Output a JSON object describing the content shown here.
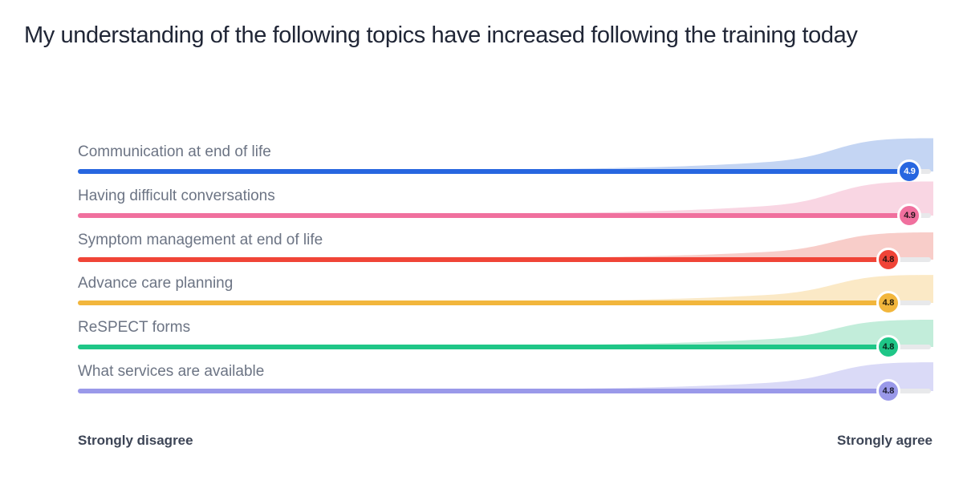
{
  "title": "My understanding of the following topics have increased following the training today",
  "axis": {
    "left_label": "Strongly disagree",
    "right_label": "Strongly agree"
  },
  "chart_data": {
    "type": "area",
    "subtype": "rating-scale-averages-with-distribution-ridges",
    "title": "My understanding of the following topics have increased following the training today",
    "scale": {
      "min": 1,
      "max": 5,
      "min_label": "Strongly disagree",
      "max_label": "Strongly agree"
    },
    "categories": [
      "Communication at end of life",
      "Having difficult conversations",
      "Symptom management at end of life",
      "Advance care planning",
      "ReSPECT forms",
      "What services are available"
    ],
    "values": [
      4.9,
      4.9,
      4.8,
      4.8,
      4.8,
      4.8
    ],
    "grid": false,
    "legend": false,
    "rows": [
      {
        "label": "Communication at end of life",
        "value": 4.9,
        "display_value": "4.9",
        "line_color": "#2766e0",
        "ridge_color": "#c4d5f3",
        "value_text_color": "#ffffff",
        "ridge_height": 44
      },
      {
        "label": "Having difficult conversations",
        "value": 4.9,
        "display_value": "4.9",
        "line_color": "#f0709e",
        "ridge_color": "#f9d6e3",
        "value_text_color": "#26161d",
        "ridge_height": 45
      },
      {
        "label": "Symptom management at end of life",
        "value": 4.8,
        "display_value": "4.8",
        "line_color": "#f04437",
        "ridge_color": "#f8cdc9",
        "value_text_color": "#26120f",
        "ridge_height": 36
      },
      {
        "label": "Advance care planning",
        "value": 4.8,
        "display_value": "4.8",
        "line_color": "#f2b63c",
        "ridge_color": "#fbe9c6",
        "value_text_color": "#231a07",
        "ridge_height": 37
      },
      {
        "label": "ReSPECT forms",
        "value": 4.8,
        "display_value": "4.8",
        "line_color": "#1fc687",
        "ridge_color": "#c2edda",
        "value_text_color": "#0b2318",
        "ridge_height": 36
      },
      {
        "label": "What services are available",
        "value": 4.8,
        "display_value": "4.8",
        "line_color": "#9a99e9",
        "ridge_color": "#dadaf7",
        "value_text_color": "#1c1c30",
        "ridge_height": 38
      }
    ]
  },
  "styles": {
    "background": "#ffffff",
    "track_color": "#e8e9eb",
    "label_color": "#6c7484",
    "title_color": "#202636",
    "axis_label_color": "#3d4556"
  }
}
